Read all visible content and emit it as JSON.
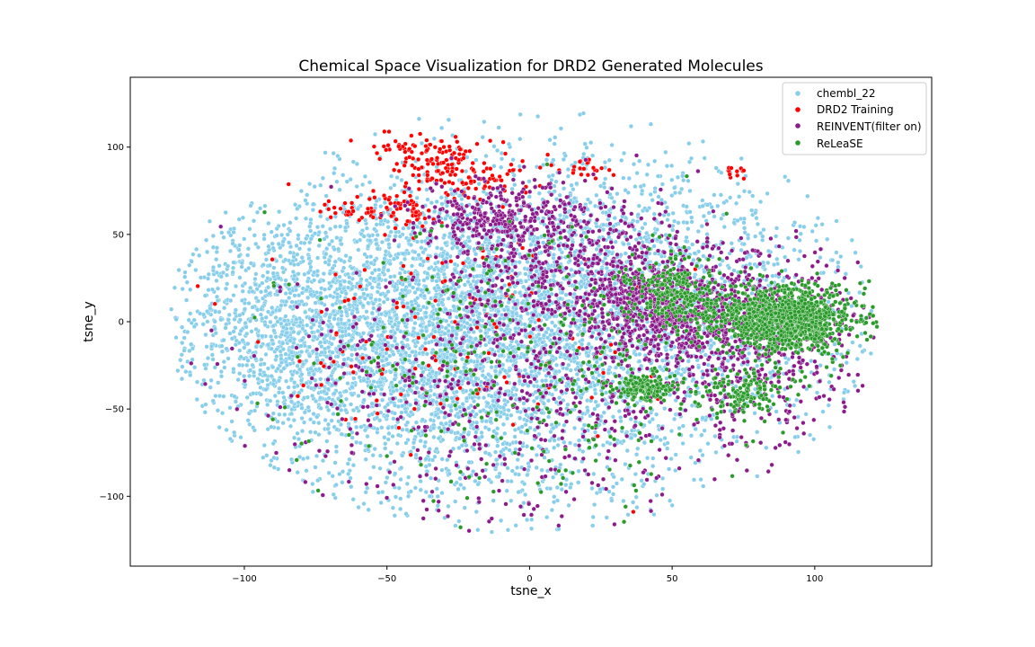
{
  "chart_data": {
    "type": "scatter",
    "title": "Chemical Space Visualization for DRD2 Generated Molecules",
    "xlabel": "tsne_x",
    "ylabel": "tsne_y",
    "xlim": [
      -140,
      141
    ],
    "ylim": [
      -140,
      140
    ],
    "x_ticks": [
      -100,
      -50,
      0,
      50,
      100
    ],
    "y_ticks": [
      -100,
      -50,
      0,
      50,
      100
    ],
    "x_tick_labels": [
      "−100",
      "−50",
      "0",
      "50",
      "100"
    ],
    "y_tick_labels": [
      "−100",
      "−50",
      "0",
      "50",
      "100"
    ],
    "grid": false,
    "legend_position": "top-right",
    "series": [
      {
        "name": "chembl_22",
        "color": "#87ceeb",
        "point_count": 6500,
        "regions": [
          {
            "cx": -20,
            "cy": -15,
            "sx": 45,
            "sy": 45,
            "weight": 0.55
          },
          {
            "cx": -50,
            "cy": 0,
            "sx": 30,
            "sy": 35,
            "weight": 0.15
          },
          {
            "cx": 20,
            "cy": 40,
            "sx": 40,
            "sy": 35,
            "weight": 0.12
          },
          {
            "cx": 60,
            "cy": 0,
            "sx": 35,
            "sy": 40,
            "weight": 0.1
          },
          {
            "cx": -90,
            "cy": 0,
            "sx": 20,
            "sy": 30,
            "weight": 0.08
          }
        ]
      },
      {
        "name": "DRD2 Training",
        "color": "#ff0000",
        "point_count": 420,
        "regions": [
          {
            "cx": -30,
            "cy": 88,
            "sx": 8,
            "sy": 8,
            "weight": 0.2
          },
          {
            "cx": -45,
            "cy": 65,
            "sx": 6,
            "sy": 5,
            "weight": 0.15
          },
          {
            "cx": -15,
            "cy": 85,
            "sx": 8,
            "sy": 8,
            "weight": 0.12
          },
          {
            "cx": 20,
            "cy": 88,
            "sx": 5,
            "sy": 4,
            "weight": 0.05
          },
          {
            "cx": 72,
            "cy": 86,
            "sx": 3,
            "sy": 2,
            "weight": 0.03
          },
          {
            "cx": -40,
            "cy": 100,
            "sx": 8,
            "sy": 4,
            "weight": 0.1
          },
          {
            "cx": -65,
            "cy": 62,
            "sx": 5,
            "sy": 3,
            "weight": 0.05
          },
          {
            "cx": -30,
            "cy": 0,
            "sx": 35,
            "sy": 35,
            "weight": 0.3
          }
        ]
      },
      {
        "name": "REINVENT(filter on)",
        "color": "#8b1a8b",
        "point_count": 2600,
        "regions": [
          {
            "cx": 50,
            "cy": 5,
            "sx": 15,
            "sy": 14,
            "weight": 0.25
          },
          {
            "cx": 80,
            "cy": -10,
            "sx": 18,
            "sy": 25,
            "weight": 0.2
          },
          {
            "cx": 20,
            "cy": 30,
            "sx": 22,
            "sy": 20,
            "weight": 0.2
          },
          {
            "cx": -10,
            "cy": 60,
            "sx": 15,
            "sy": 10,
            "weight": 0.12
          },
          {
            "cx": 0,
            "cy": -40,
            "sx": 45,
            "sy": 40,
            "weight": 0.23
          }
        ]
      },
      {
        "name": "ReLeaSE",
        "color": "#2a9b2a",
        "point_count": 2000,
        "regions": [
          {
            "cx": 90,
            "cy": 2,
            "sx": 12,
            "sy": 9,
            "weight": 0.55
          },
          {
            "cx": 52,
            "cy": 15,
            "sx": 8,
            "sy": 10,
            "weight": 0.12
          },
          {
            "cx": 40,
            "cy": -38,
            "sx": 5,
            "sy": 4,
            "weight": 0.08
          },
          {
            "cx": 75,
            "cy": -40,
            "sx": 8,
            "sy": 6,
            "weight": 0.07
          },
          {
            "cx": 10,
            "cy": -20,
            "sx": 40,
            "sy": 40,
            "weight": 0.18
          }
        ]
      }
    ]
  }
}
